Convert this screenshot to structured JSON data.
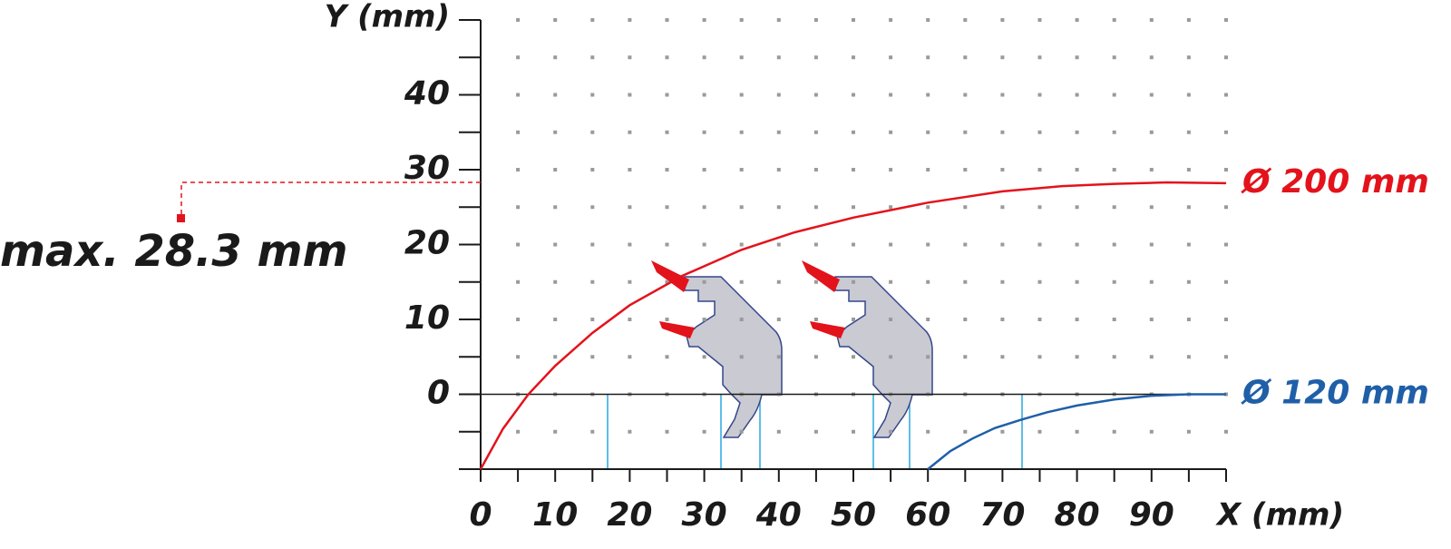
{
  "chart_data": {
    "type": "line",
    "x_label": "X (mm)",
    "y_label": "Y (mm)",
    "xlim": [
      0,
      100
    ],
    "ylim": [
      -10,
      50
    ],
    "xticks": [
      0,
      10,
      20,
      30,
      40,
      50,
      60,
      70,
      80,
      90
    ],
    "yticks": [
      0,
      10,
      20,
      30,
      40
    ],
    "xminor_ticks": [
      0,
      5,
      10,
      15,
      20,
      25,
      30,
      35,
      40,
      45,
      50,
      55,
      60,
      65,
      70,
      75,
      80,
      85,
      90,
      95,
      100
    ],
    "yminor_ticks": [
      -10,
      -5,
      0,
      5,
      10,
      15,
      20,
      25,
      30,
      35,
      40,
      45,
      50
    ],
    "grid": "dots",
    "series": [
      {
        "name": "Ø 200 mm",
        "color": "#e3131b",
        "x": [
          0,
          3,
          6.4,
          10,
          15,
          20,
          27,
          35,
          42,
          50,
          60,
          70,
          78,
          85,
          92,
          100
        ],
        "values": [
          -10,
          -4.6,
          0,
          3.8,
          8.2,
          11.9,
          15.8,
          19.3,
          21.6,
          23.6,
          25.6,
          27.1,
          27.8,
          28.1,
          28.3,
          28.2
        ]
      },
      {
        "name": "Ø 120 mm",
        "color": "#1f5fa8",
        "x": [
          60,
          63,
          66,
          69,
          72.5,
          76,
          80,
          85,
          90,
          95,
          100
        ],
        "values": [
          -10,
          -7.6,
          -5.9,
          -4.5,
          -3.4,
          -2.4,
          -1.5,
          -0.7,
          -0.2,
          0,
          0
        ]
      }
    ],
    "annotation": {
      "text": "max. 28.3 mm",
      "value": 28.3
    }
  }
}
